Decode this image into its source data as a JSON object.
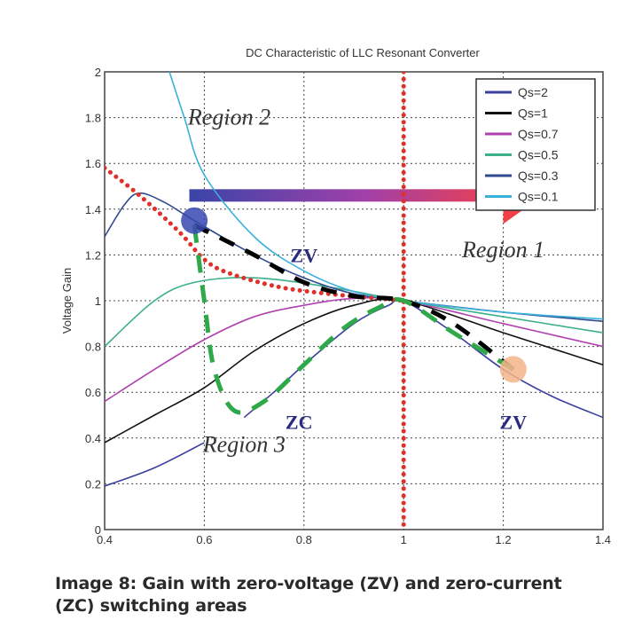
{
  "chart_data": {
    "type": "line",
    "title": "DC Characteristic of LLC Resonant Converter",
    "xlabel": "",
    "ylabel": "Voltage Gain",
    "xlim": [
      0.4,
      1.4
    ],
    "ylim": [
      0,
      2
    ],
    "xticks": [
      "0.4",
      "0.6",
      "0.8",
      "1",
      "1.2",
      "1.4"
    ],
    "yticks": [
      "0",
      "0.2",
      "0.4",
      "0.6",
      "0.8",
      "1",
      "1.2",
      "1.4",
      "1.6",
      "1.8",
      "2"
    ],
    "grid": true,
    "legend_position": "top-right",
    "series": [
      {
        "name": "Qs=2",
        "color": "#3a3f9e",
        "points": [
          [
            0.4,
            0.19
          ],
          [
            0.5,
            0.27
          ],
          [
            0.6,
            0.38
          ],
          null,
          [
            0.68,
            0.49
          ],
          [
            0.75,
            0.62
          ],
          [
            0.8,
            0.72
          ],
          [
            0.9,
            0.9
          ],
          [
            0.97,
            0.98
          ],
          [
            1,
            1
          ],
          [
            1.1,
            0.86
          ],
          [
            1.2,
            0.7
          ],
          [
            1.3,
            0.58
          ],
          [
            1.4,
            0.49
          ]
        ]
      },
      {
        "name": "Qs=1",
        "color": "#111111",
        "points": [
          [
            0.4,
            0.38
          ],
          [
            0.5,
            0.5
          ],
          [
            0.6,
            0.62
          ],
          [
            0.7,
            0.78
          ],
          [
            0.8,
            0.9
          ],
          [
            0.9,
            0.98
          ],
          [
            1,
            1
          ],
          [
            1.2,
            0.86
          ],
          [
            1.4,
            0.72
          ]
        ]
      },
      {
        "name": "Qs=0.7",
        "color": "#b040b0",
        "points": [
          [
            0.4,
            0.56
          ],
          [
            0.5,
            0.7
          ],
          [
            0.6,
            0.83
          ],
          [
            0.7,
            0.93
          ],
          [
            0.8,
            0.98
          ],
          [
            0.9,
            1.01
          ],
          [
            1,
            1
          ],
          [
            1.2,
            0.9
          ],
          [
            1.4,
            0.8
          ]
        ]
      },
      {
        "name": "Qs=0.5",
        "color": "#3cb08a",
        "points": [
          [
            0.4,
            0.8
          ],
          [
            0.5,
            1.0
          ],
          [
            0.58,
            1.08
          ],
          [
            0.7,
            1.1
          ],
          [
            0.85,
            1.06
          ],
          [
            1,
            1
          ],
          [
            1.2,
            0.93
          ],
          [
            1.4,
            0.86
          ]
        ]
      },
      {
        "name": "Qs=0.3",
        "color": "#2f4a8f",
        "points": [
          [
            0.4,
            1.28
          ],
          [
            0.44,
            1.42
          ],
          [
            0.47,
            1.47
          ],
          [
            0.52,
            1.43
          ],
          [
            0.58,
            1.35
          ],
          [
            0.7,
            1.2
          ],
          [
            0.8,
            1.1
          ],
          [
            0.9,
            1.03
          ],
          [
            1,
            1
          ],
          [
            1.2,
            0.95
          ],
          [
            1.4,
            0.91
          ]
        ]
      },
      {
        "name": "Qs=0.1",
        "color": "#3ab0dc",
        "points": [
          [
            0.53,
            2
          ],
          [
            0.56,
            1.8
          ],
          [
            0.6,
            1.55
          ],
          [
            0.7,
            1.28
          ],
          [
            0.8,
            1.13
          ],
          [
            0.9,
            1.04
          ],
          [
            1,
            1
          ],
          [
            1.2,
            0.95
          ],
          [
            1.4,
            0.92
          ]
        ]
      }
    ],
    "overlays": {
      "boundary_red_dotted": {
        "color": "#e0302a",
        "points": [
          [
            0.4,
            1.58
          ],
          [
            0.47,
            1.46
          ],
          [
            0.55,
            1.3
          ],
          [
            0.6,
            1.18
          ],
          [
            0.65,
            1.12
          ],
          [
            0.75,
            1.06
          ],
          [
            0.85,
            1.03
          ],
          [
            0.95,
            1.01
          ],
          [
            1,
            1
          ]
        ],
        "vertical_x": 1
      },
      "zc_boundary_green_dashed": {
        "color": "#2fa84a",
        "points": [
          [
            0.58,
            1.33
          ],
          [
            0.6,
            1.0
          ],
          [
            0.62,
            0.7
          ],
          [
            0.66,
            0.52
          ],
          [
            0.72,
            0.56
          ],
          [
            0.8,
            0.72
          ],
          [
            0.88,
            0.88
          ],
          [
            0.95,
            0.97
          ],
          [
            1,
            1
          ],
          [
            1.1,
            0.86
          ],
          [
            1.22,
            0.7
          ]
        ]
      },
      "zv_boundary_black_dashed": {
        "color": "#000000",
        "points": [
          [
            0.58,
            1.33
          ],
          [
            0.7,
            1.2
          ],
          [
            0.8,
            1.08
          ],
          [
            0.9,
            1.02
          ],
          [
            1,
            1
          ],
          [
            1.1,
            0.9
          ],
          [
            1.22,
            0.7
          ]
        ]
      },
      "markers": [
        {
          "x": 0.58,
          "y": 1.35,
          "color": "#3848b0"
        },
        {
          "x": 1.22,
          "y": 0.7,
          "color": "#f5b48a"
        }
      ],
      "arrow": {
        "x_from": 0.57,
        "x_to": 1.28,
        "y": 1.46,
        "color_start": "#3a44a8",
        "color_end": "#f0404a"
      }
    },
    "annotations": [
      {
        "text": "Region 2",
        "x": 0.65,
        "y": 1.8
      },
      {
        "text": "Region 1",
        "x": 1.2,
        "y": 1.22
      },
      {
        "text": "Region 3",
        "x": 0.68,
        "y": 0.37
      },
      {
        "text": "ZV",
        "x": 0.8,
        "y": 1.2
      },
      {
        "text": "ZC",
        "x": 0.79,
        "y": 0.47
      },
      {
        "text": "ZV",
        "x": 1.22,
        "y": 0.47
      }
    ]
  },
  "caption": "Image 8: Gain with zero-voltage (ZV) and zero-current (ZC) switching areas"
}
